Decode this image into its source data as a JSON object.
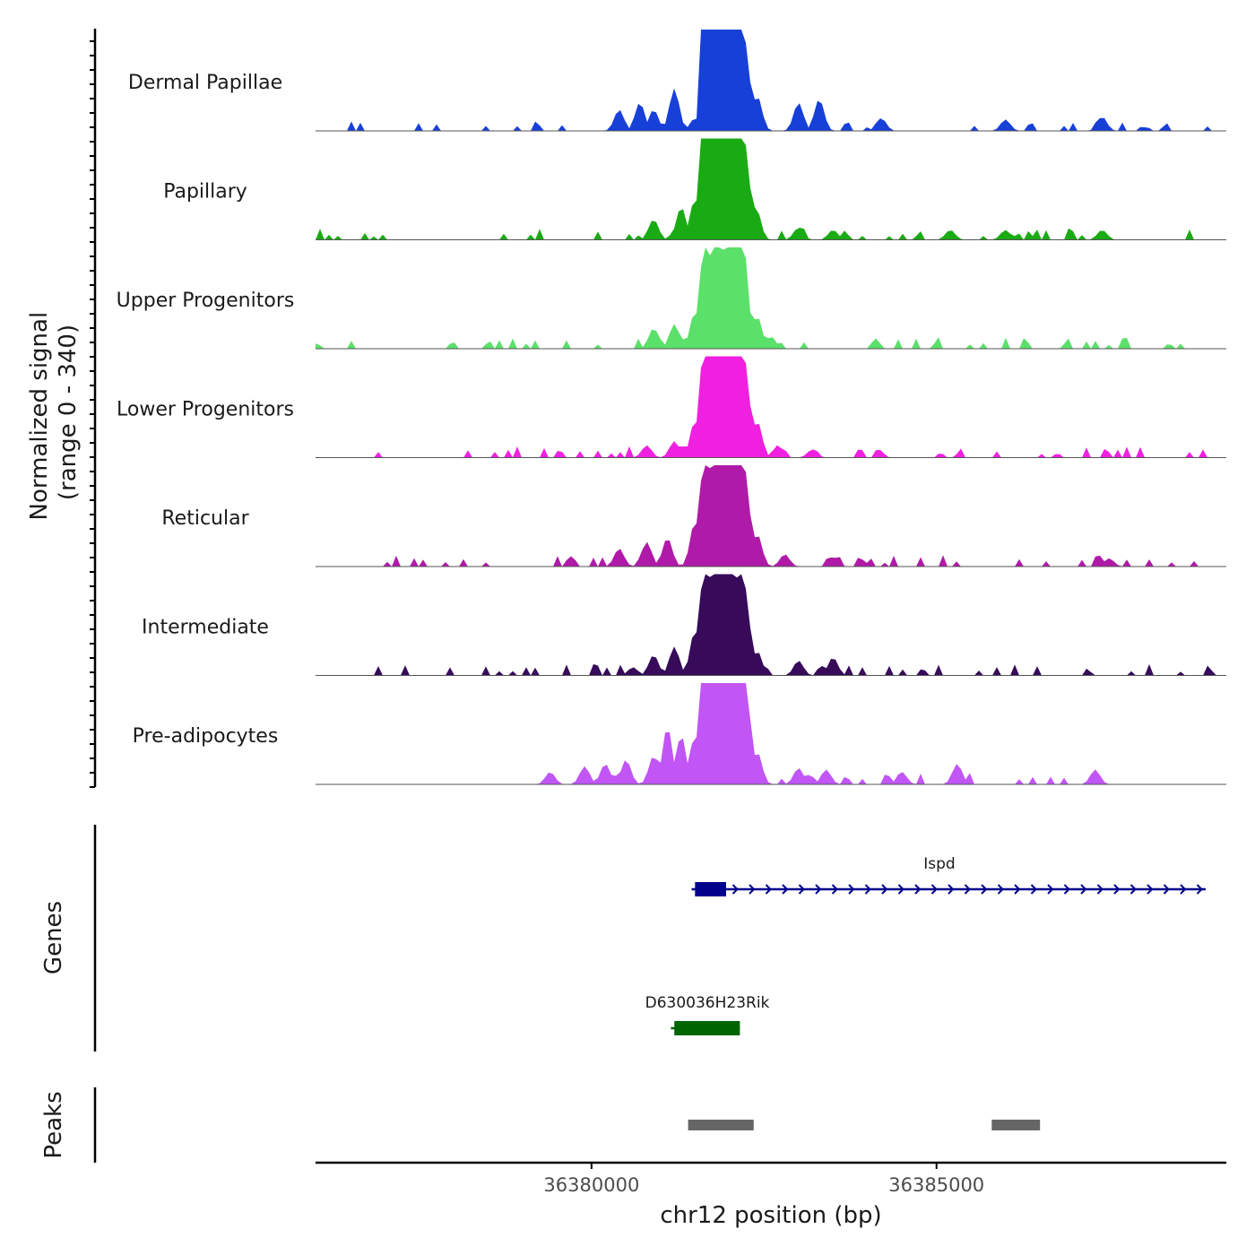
{
  "chart_data": {
    "type": "area",
    "xlabel": "chr12 position (bp)",
    "ylabel_line1": "Normalized signal",
    "ylabel_line2": "(range 0 - 340)",
    "y_range": [
      0,
      340
    ],
    "x_range": [
      36376000,
      36389200
    ],
    "x_ticks": [
      {
        "value": 36380000,
        "label": "36380000"
      },
      {
        "value": 36385000,
        "label": "36385000"
      }
    ],
    "tracks": [
      {
        "name": "Dermal Papillae",
        "color": "#1740d9",
        "noise": [
          36376500,
          36389000
        ],
        "scale": 0.86,
        "peaks": [
          [
            36381500,
            18
          ],
          [
            36381630,
            250
          ],
          [
            36381750,
            210
          ],
          [
            36381860,
            300
          ],
          [
            36381960,
            200
          ],
          [
            36382060,
            160
          ],
          [
            36382150,
            230
          ],
          [
            36382250,
            130
          ],
          [
            36382400,
            50
          ],
          [
            36382000,
            120
          ],
          [
            36380400,
            30
          ],
          [
            36380700,
            40
          ],
          [
            36380900,
            30
          ],
          [
            36381200,
            60
          ],
          [
            36383000,
            40
          ],
          [
            36383300,
            45
          ],
          [
            36384200,
            18
          ],
          [
            36386000,
            16
          ],
          [
            36387400,
            20
          ]
        ]
      },
      {
        "name": "Papillary",
        "color": "#1aab14",
        "noise": [
          36376000,
          36389000
        ],
        "scale": 1.0,
        "peaks": [
          [
            36380900,
            25
          ],
          [
            36381300,
            40
          ],
          [
            36381500,
            50
          ],
          [
            36381640,
            270
          ],
          [
            36381760,
            210
          ],
          [
            36381860,
            280
          ],
          [
            36381960,
            190
          ],
          [
            36382060,
            170
          ],
          [
            36382150,
            220
          ],
          [
            36382250,
            120
          ],
          [
            36382380,
            40
          ],
          [
            36383000,
            15
          ],
          [
            36383500,
            12
          ],
          [
            36385200,
            12
          ],
          [
            36386000,
            12
          ],
          [
            36387400,
            12
          ]
        ]
      },
      {
        "name": "Upper Progenitors",
        "color": "#5be06a",
        "noise": [
          36376000,
          36389000
        ],
        "scale": 1.0,
        "peaks": [
          [
            36380900,
            25
          ],
          [
            36381200,
            30
          ],
          [
            36381500,
            45
          ],
          [
            36381640,
            200
          ],
          [
            36381760,
            180
          ],
          [
            36381860,
            230
          ],
          [
            36381960,
            170
          ],
          [
            36382060,
            150
          ],
          [
            36382150,
            310
          ],
          [
            36382240,
            110
          ],
          [
            36382400,
            40
          ],
          [
            36382600,
            15
          ]
        ]
      },
      {
        "name": "Lower Progenitors",
        "color": "#f020e0",
        "noise": [
          36376800,
          36389000
        ],
        "scale": 1.0,
        "peaks": [
          [
            36380800,
            15
          ],
          [
            36381200,
            20
          ],
          [
            36381500,
            45
          ],
          [
            36381640,
            220
          ],
          [
            36381760,
            240
          ],
          [
            36381860,
            310
          ],
          [
            36381960,
            240
          ],
          [
            36382060,
            200
          ],
          [
            36382150,
            330
          ],
          [
            36382250,
            120
          ],
          [
            36382400,
            45
          ],
          [
            36382700,
            15
          ],
          [
            36383200,
            10
          ]
        ]
      },
      {
        "name": "Reticular",
        "color": "#b01aa8",
        "noise": [
          36376800,
          36389000
        ],
        "scale": 1.0,
        "peaks": [
          [
            36380400,
            22
          ],
          [
            36380800,
            30
          ],
          [
            36381100,
            35
          ],
          [
            36381500,
            55
          ],
          [
            36381640,
            210
          ],
          [
            36381760,
            190
          ],
          [
            36381860,
            260
          ],
          [
            36381960,
            190
          ],
          [
            36382060,
            160
          ],
          [
            36382150,
            200
          ],
          [
            36382250,
            120
          ],
          [
            36382400,
            40
          ],
          [
            36382800,
            15
          ],
          [
            36383500,
            12
          ],
          [
            36387500,
            10
          ]
        ]
      },
      {
        "name": "Intermediate",
        "color": "#370a5a",
        "noise": [
          36376600,
          36389000
        ],
        "scale": 1.0,
        "peaks": [
          [
            36380600,
            10
          ],
          [
            36380900,
            25
          ],
          [
            36381200,
            35
          ],
          [
            36381500,
            55
          ],
          [
            36381640,
            210
          ],
          [
            36381760,
            190
          ],
          [
            36381860,
            250
          ],
          [
            36381960,
            180
          ],
          [
            36382060,
            160
          ],
          [
            36382150,
            190
          ],
          [
            36382250,
            110
          ],
          [
            36382400,
            30
          ],
          [
            36383000,
            18
          ],
          [
            36383500,
            22
          ]
        ]
      },
      {
        "name": "Pre-adipocytes",
        "color": "#c155f5",
        "noise": [
          36379300,
          36387500
        ],
        "scale": 1.0,
        "peaks": [
          [
            36379400,
            15
          ],
          [
            36379900,
            22
          ],
          [
            36380200,
            25
          ],
          [
            36380500,
            30
          ],
          [
            36380900,
            35
          ],
          [
            36381100,
            70
          ],
          [
            36381300,
            60
          ],
          [
            36381500,
            60
          ],
          [
            36381640,
            290
          ],
          [
            36381760,
            260
          ],
          [
            36381860,
            250
          ],
          [
            36381960,
            200
          ],
          [
            36382060,
            190
          ],
          [
            36382150,
            220
          ],
          [
            36382250,
            150
          ],
          [
            36382400,
            40
          ],
          [
            36383000,
            20
          ],
          [
            36383400,
            18
          ],
          [
            36384500,
            15
          ],
          [
            36385300,
            25
          ],
          [
            36387300,
            18
          ]
        ]
      }
    ],
    "genes": [
      {
        "name": "Ispd",
        "color": "#00008b",
        "start": 36381450,
        "end": 36388900,
        "exon": [
          36381500,
          36381950
        ],
        "strand": "+"
      },
      {
        "name": "D630036H23Rik",
        "color": "#006400",
        "start": 36381150,
        "end": 36382150,
        "exon": [
          36381200,
          36382150
        ],
        "strand": "+"
      }
    ],
    "peaks_regions": [
      [
        36381400,
        36382350
      ],
      [
        36385800,
        36386500
      ]
    ],
    "genes_label": "Genes",
    "peaks_label": "Peaks"
  }
}
